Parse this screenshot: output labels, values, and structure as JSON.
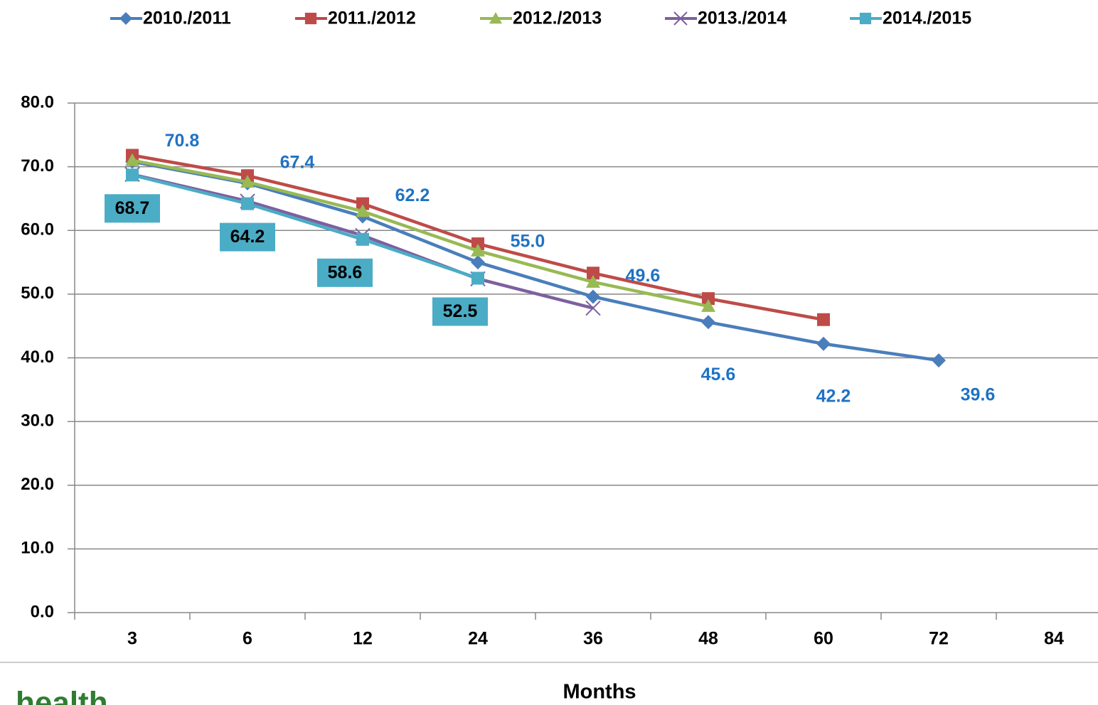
{
  "chart_data": {
    "type": "line",
    "x_label": "Months",
    "categories": [
      "3",
      "6",
      "12",
      "24",
      "36",
      "48",
      "60",
      "72",
      "84"
    ],
    "ylim": [
      0,
      80
    ],
    "yticks": [
      {
        "value": 0,
        "label": "0.0"
      },
      {
        "value": 10,
        "label": "10.0"
      },
      {
        "value": 20,
        "label": "20.0"
      },
      {
        "value": 30,
        "label": "30.0"
      },
      {
        "value": 40,
        "label": "40.0"
      },
      {
        "value": 50,
        "label": "50.0"
      },
      {
        "value": 60,
        "label": "60.0"
      },
      {
        "value": 70,
        "label": "70.0"
      },
      {
        "value": 80,
        "label": "80.0"
      }
    ],
    "grid": true,
    "legend": "top",
    "series": [
      {
        "name": "2010./2011",
        "color": "#4a7ebb",
        "marker": "diamond",
        "values": [
          70.8,
          67.4,
          62.2,
          55.0,
          49.6,
          45.6,
          42.2,
          39.6,
          null
        ],
        "value_labels": [
          "70.8",
          "67.4",
          "62.2",
          "55.0",
          "49.6",
          "45.6",
          "42.2",
          "39.6",
          null
        ]
      },
      {
        "name": "2011./2012",
        "color": "#be4b48",
        "marker": "square",
        "values": [
          71.8,
          68.6,
          64.2,
          57.9,
          53.3,
          49.3,
          46.0,
          null,
          null
        ]
      },
      {
        "name": "2012./2013",
        "color": "#98b954",
        "marker": "triangle",
        "values": [
          71.0,
          67.6,
          63.0,
          56.8,
          51.9,
          48.1,
          null,
          null,
          null
        ]
      },
      {
        "name": "2013./2014",
        "color": "#7d60a0",
        "marker": "x",
        "values": [
          68.8,
          64.6,
          59.2,
          52.4,
          47.8,
          null,
          null,
          null,
          null
        ]
      },
      {
        "name": "2014./2015",
        "color": "#4bacc6",
        "marker": "square",
        "values": [
          68.7,
          64.2,
          58.6,
          52.5,
          null,
          null,
          null,
          null,
          null
        ]
      }
    ],
    "logo_text": "health"
  }
}
